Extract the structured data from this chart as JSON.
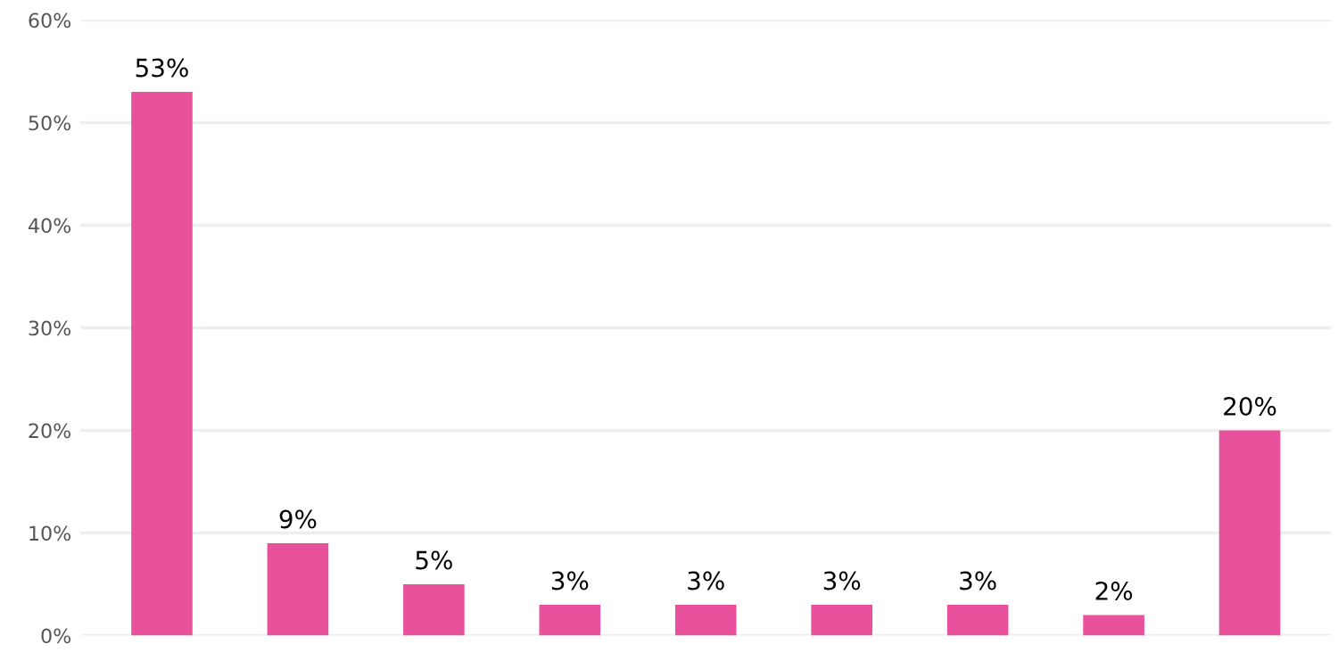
{
  "chart_data": {
    "type": "bar",
    "categories": [
      null,
      null,
      null,
      null,
      null,
      null,
      null,
      null,
      null
    ],
    "values": [
      53,
      9,
      5,
      3,
      3,
      3,
      3,
      2,
      20
    ],
    "value_labels": [
      "53%",
      "9%",
      "5%",
      "3%",
      "3%",
      "3%",
      "3%",
      "2%",
      "20%"
    ],
    "color": "#e8519c",
    "ylim": [
      0,
      60
    ],
    "yticks": [
      {
        "value": 0,
        "label": "0%"
      },
      {
        "value": 10,
        "label": "10%"
      },
      {
        "value": 20,
        "label": "20%"
      },
      {
        "value": 30,
        "label": "30%"
      },
      {
        "value": 40,
        "label": "40%"
      },
      {
        "value": 50,
        "label": "50%"
      },
      {
        "value": 60,
        "label": "60%"
      }
    ],
    "grid": "y"
  }
}
